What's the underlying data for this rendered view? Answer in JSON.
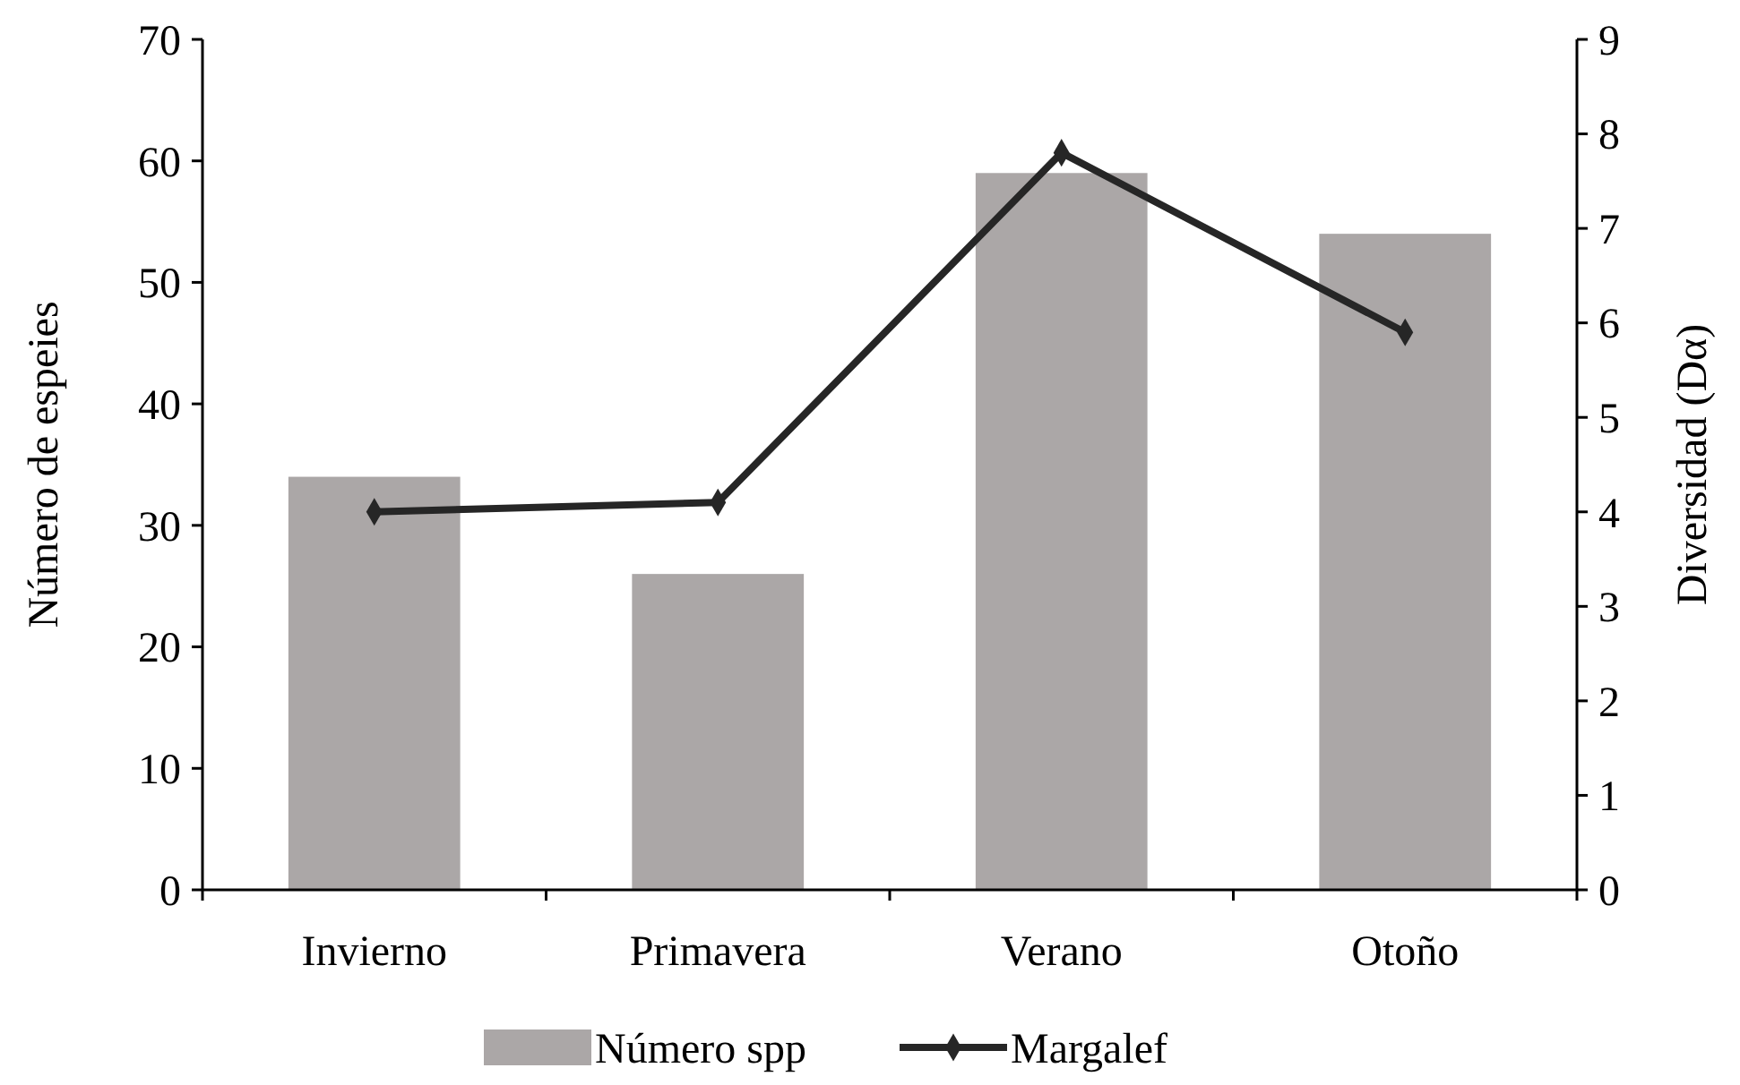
{
  "chart_data": {
    "type": "bar",
    "categories": [
      "Invierno",
      "Primavera",
      "Verano",
      "Otoño"
    ],
    "series": [
      {
        "name": "Número spp",
        "color": "#aba7a7",
        "values": [
          34,
          26,
          59,
          54
        ]
      },
      {
        "name": "Margalef",
        "type": "line",
        "axis": "y2",
        "color": "#262626",
        "marker": "diamond",
        "values": [
          4.0,
          4.1,
          7.8,
          5.9
        ]
      }
    ],
    "ylabel": "Número de espeies",
    "y2label": "Diversidad (Dα)",
    "ylim": [
      0,
      70
    ],
    "yticks": [
      0,
      10,
      20,
      30,
      40,
      50,
      60,
      70
    ],
    "y2lim": [
      0,
      9
    ],
    "y2ticks": [
      0,
      1,
      2,
      3,
      4,
      5,
      6,
      7,
      8,
      9
    ],
    "grid": false,
    "legend": "bottom"
  }
}
